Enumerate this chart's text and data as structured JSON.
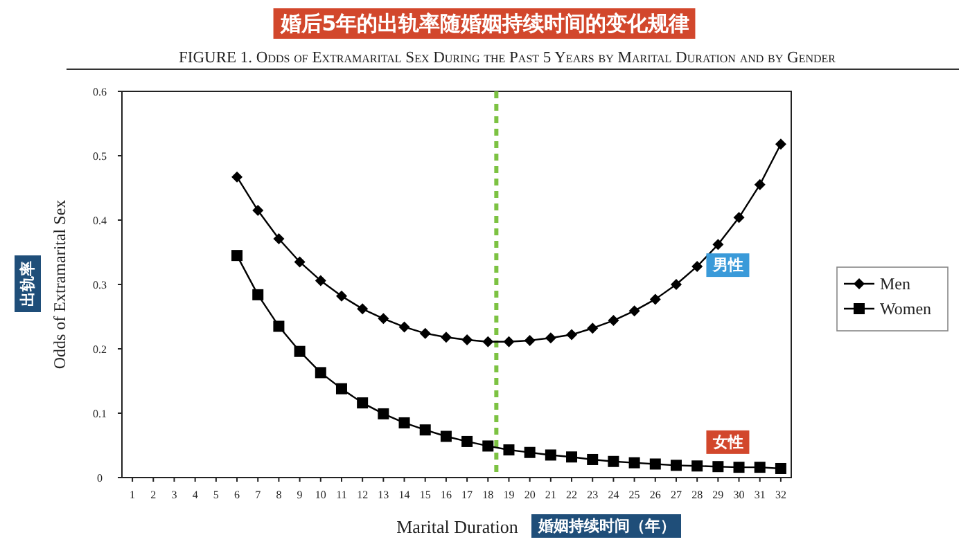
{
  "chart_data": {
    "type": "line",
    "title": "婚后5年的出轨率随婚姻持续时间的变化规律",
    "subtitle": "FIGURE 1. Odds of Extramarital Sex During the Past 5 Years by Marital Duration and by Gender",
    "xlabel": "Marital Duration",
    "ylabel": "Odds of Extramarital Sex",
    "annotations": [
      "出轨率",
      "婚姻持续时间（年）",
      {
        "text": "男性",
        "x": 29.5,
        "y": 0.33
      },
      {
        "text": "女性",
        "x": 29.5,
        "y": 0.055
      }
    ],
    "x": [
      6,
      7,
      8,
      9,
      10,
      11,
      12,
      13,
      14,
      15,
      16,
      17,
      18,
      19,
      20,
      21,
      22,
      23,
      24,
      25,
      26,
      27,
      28,
      29,
      30,
      31,
      32
    ],
    "series": [
      {
        "name": "Men",
        "color": "#000000",
        "marker": "diamond",
        "values": [
          0.467,
          0.415,
          0.371,
          0.335,
          0.306,
          0.282,
          0.262,
          0.247,
          0.234,
          0.224,
          0.218,
          0.214,
          0.211,
          0.211,
          0.213,
          0.217,
          0.222,
          0.232,
          0.244,
          0.259,
          0.277,
          0.3,
          0.328,
          0.362,
          0.404,
          0.455,
          0.518
        ]
      },
      {
        "name": "Women",
        "color": "#000000",
        "marker": "square",
        "values": [
          0.345,
          0.284,
          0.235,
          0.196,
          0.163,
          0.138,
          0.116,
          0.099,
          0.085,
          0.074,
          0.064,
          0.056,
          0.049,
          0.043,
          0.039,
          0.035,
          0.032,
          0.028,
          0.025,
          0.023,
          0.021,
          0.019,
          0.018,
          0.017,
          0.016,
          0.016,
          0.014
        ]
      }
    ],
    "xlim": [
      0.5,
      32.5
    ],
    "xticks": [
      1,
      2,
      3,
      4,
      5,
      6,
      7,
      8,
      9,
      10,
      11,
      12,
      13,
      14,
      15,
      16,
      17,
      18,
      19,
      20,
      21,
      22,
      23,
      24,
      25,
      26,
      27,
      28,
      29,
      30,
      31,
      32
    ],
    "ylim": [
      0,
      0.6
    ],
    "yticks": [
      0,
      0.1,
      0.2,
      0.3,
      0.4,
      0.5,
      0.6
    ],
    "ref_lines": [
      {
        "axis": "x",
        "value": 18.4,
        "color": "#7cc242",
        "line_style": "dashed"
      }
    ],
    "grid": false,
    "legend": "right",
    "line_style": "solid"
  }
}
